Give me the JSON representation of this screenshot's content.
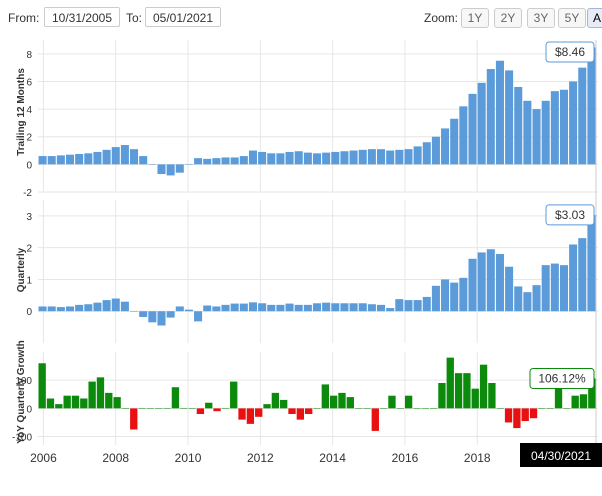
{
  "range": {
    "from_label": "From:",
    "from_value": "10/31/2005",
    "to_label": "To:",
    "to_value": "05/01/2021"
  },
  "zoom": {
    "label": "Zoom:",
    "buttons": [
      "1Y",
      "2Y",
      "3Y",
      "5Y",
      "A"
    ],
    "active": "A"
  },
  "colors": {
    "blue": "#5b9bd9",
    "green": "#0c8a0c",
    "red": "#e81010",
    "grid": "#e6e6e6"
  },
  "chart_data": [
    {
      "type": "bar",
      "ylabel": "Trailing 12 Months",
      "ylim": [
        -2,
        9
      ],
      "ticks": [
        -2,
        0,
        2,
        4,
        6,
        8
      ],
      "tick_labels": [
        "-2",
        "0",
        "2",
        "4",
        "6",
        "8"
      ],
      "last_label": "$8.46",
      "values": [
        0.6,
        0.6,
        0.65,
        0.7,
        0.75,
        0.8,
        0.9,
        1.05,
        1.25,
        1.4,
        1.1,
        0.6,
        0.0,
        -0.7,
        -0.8,
        -0.6,
        0.0,
        0.45,
        0.4,
        0.45,
        0.5,
        0.5,
        0.6,
        1.0,
        0.9,
        0.8,
        0.8,
        0.9,
        0.95,
        0.85,
        0.8,
        0.85,
        0.9,
        0.95,
        1.0,
        1.05,
        1.1,
        1.1,
        1.0,
        1.05,
        1.1,
        1.3,
        1.6,
        2.0,
        2.6,
        3.3,
        4.2,
        5.1,
        5.9,
        6.9,
        7.5,
        6.8,
        5.6,
        4.6,
        4.0,
        4.6,
        5.3,
        5.4,
        6.0,
        7.0,
        8.46
      ]
    },
    {
      "type": "bar",
      "ylabel": "Quarterly",
      "ylim": [
        -1,
        3.5
      ],
      "ticks": [
        0,
        1,
        2,
        3
      ],
      "tick_labels": [
        "0",
        "1",
        "2",
        "3"
      ],
      "last_label": "$3.03",
      "values": [
        0.15,
        0.15,
        0.13,
        0.15,
        0.2,
        0.22,
        0.27,
        0.35,
        0.4,
        0.3,
        0.0,
        -0.18,
        -0.35,
        -0.45,
        -0.2,
        0.15,
        0.05,
        -0.32,
        0.18,
        0.15,
        0.2,
        0.24,
        0.24,
        0.28,
        0.25,
        0.2,
        0.2,
        0.24,
        0.2,
        0.2,
        0.25,
        0.27,
        0.25,
        0.25,
        0.25,
        0.25,
        0.22,
        0.2,
        0.1,
        0.38,
        0.35,
        0.35,
        0.45,
        0.8,
        1.0,
        0.9,
        1.05,
        1.65,
        1.85,
        1.95,
        1.8,
        1.4,
        0.78,
        0.6,
        0.82,
        1.45,
        1.5,
        1.45,
        2.1,
        2.3,
        3.03
      ]
    },
    {
      "type": "bar",
      "ylabel": "YoY Quarterly Growth",
      "ylim": [
        -130,
        200
      ],
      "ticks": [
        -100,
        0,
        100
      ],
      "tick_labels": [
        "-100",
        "0",
        "100"
      ],
      "last_label": "106.12%",
      "x_ticks": [
        "2006",
        "2008",
        "2010",
        "2012",
        "2014",
        "2016",
        "2018"
      ],
      "x_tick_positions": [
        2006,
        2008,
        2010,
        2012,
        2014,
        2016,
        2018
      ],
      "date_label": "04/30/2021",
      "values": [
        160,
        35,
        15,
        45,
        45,
        35,
        95,
        110,
        55,
        40,
        0,
        -75,
        0,
        0,
        0,
        0,
        75,
        0,
        0,
        -20,
        20,
        -10,
        0,
        95,
        -40,
        -55,
        -30,
        15,
        55,
        30,
        -20,
        -40,
        -20,
        0,
        85,
        45,
        55,
        40,
        0,
        0,
        -80,
        0,
        45,
        0,
        45,
        0,
        0,
        0,
        90,
        180,
        125,
        125,
        70,
        155,
        90,
        0,
        -50,
        -70,
        -45,
        -35,
        0,
        0,
        75,
        0,
        45,
        50,
        106.12
      ]
    }
  ]
}
